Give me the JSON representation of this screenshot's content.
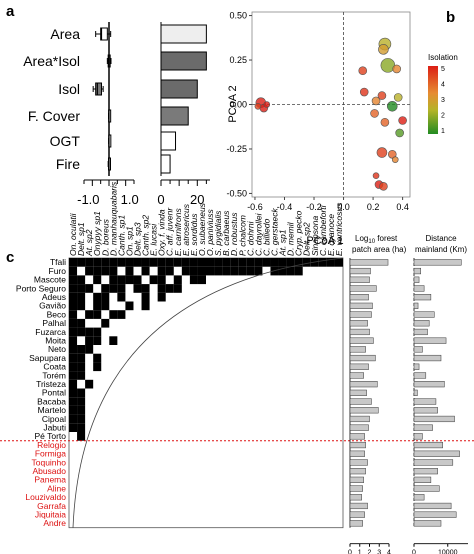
{
  "panels": {
    "a": {
      "letter": "a",
      "rows": [
        "Area",
        "Area*Isol",
        "Isol",
        "F. Cover",
        "OGT",
        "Fire"
      ],
      "effect": {
        "ticks": [
          "-1.0",
          "1.0"
        ],
        "axis": [
          -1.5,
          1.5
        ],
        "mean": [
          -0.45,
          0.0,
          -0.7,
          0.0,
          0.0,
          0.0
        ],
        "q1": [
          -0.5,
          -0.05,
          -0.8,
          -0.02,
          -0.01,
          -0.03
        ],
        "q3": [
          -0.1,
          0.05,
          -0.45,
          0.02,
          0.01,
          0.03
        ],
        "lo": [
          -0.8,
          -0.1,
          -0.95,
          -0.03,
          -0.02,
          -0.05
        ],
        "hi": [
          0.1,
          0.12,
          -0.35,
          0.03,
          0.02,
          0.06
        ]
      },
      "importance": {
        "ticks": [
          "0",
          "20"
        ],
        "axis": [
          0,
          27
        ],
        "values": [
          25,
          25,
          20,
          15,
          8,
          5
        ],
        "colors": [
          "#eeeeee",
          "#6b6b6b",
          "#6b6b6b",
          "#7a7a7a",
          "#ffffff",
          "#ffffff"
        ]
      }
    },
    "b": {
      "letter": "b",
      "chart_data": {
        "type": "scatter",
        "xlabel": "PCoA 1",
        "ylabel": "PCoA 2",
        "xlim": [
          -0.62,
          0.45
        ],
        "ylim": [
          -0.52,
          0.52
        ],
        "xticks": [
          "-0.6",
          "-0.4",
          "-0.2",
          "0.0",
          "0.2",
          "0.4"
        ],
        "yticks": [
          "0.50",
          "0.25",
          "0.00",
          "-0.25",
          "-0.50"
        ],
        "legend_title": "Isolation",
        "legend_ticks": [
          "5",
          "4",
          "3",
          "2",
          "1"
        ],
        "points": [
          {
            "x": -0.56,
            "y": 0.01,
            "iso": 5,
            "r": 5
          },
          {
            "x": -0.54,
            "y": -0.02,
            "iso": 5,
            "r": 4
          },
          {
            "x": -0.58,
            "y": -0.01,
            "iso": 4.5,
            "r": 3
          },
          {
            "x": -0.52,
            "y": 0.0,
            "iso": 5,
            "r": 3
          },
          {
            "x": 0.13,
            "y": 0.19,
            "iso": 4.5,
            "r": 4
          },
          {
            "x": 0.14,
            "y": 0.07,
            "iso": 4.7,
            "r": 4
          },
          {
            "x": 0.22,
            "y": 0.02,
            "iso": 3.5,
            "r": 4
          },
          {
            "x": 0.21,
            "y": -0.05,
            "iso": 4,
            "r": 4
          },
          {
            "x": 0.28,
            "y": 0.34,
            "iso": 2.5,
            "r": 6
          },
          {
            "x": 0.27,
            "y": 0.31,
            "iso": 3,
            "r": 5
          },
          {
            "x": 0.3,
            "y": 0.22,
            "iso": 2,
            "r": 7
          },
          {
            "x": 0.36,
            "y": 0.2,
            "iso": 3.5,
            "r": 4
          },
          {
            "x": 0.26,
            "y": 0.05,
            "iso": 4.5,
            "r": 4
          },
          {
            "x": 0.37,
            "y": 0.04,
            "iso": 2.5,
            "r": 4
          },
          {
            "x": 0.33,
            "y": -0.01,
            "iso": 1,
            "r": 5
          },
          {
            "x": 0.28,
            "y": -0.1,
            "iso": 4,
            "r": 4
          },
          {
            "x": 0.4,
            "y": -0.09,
            "iso": 5,
            "r": 4
          },
          {
            "x": 0.38,
            "y": -0.16,
            "iso": 1.5,
            "r": 4
          },
          {
            "x": 0.26,
            "y": -0.27,
            "iso": 4.5,
            "r": 5
          },
          {
            "x": 0.33,
            "y": -0.28,
            "iso": 4,
            "r": 4
          },
          {
            "x": 0.24,
            "y": -0.45,
            "iso": 5,
            "r": 4
          },
          {
            "x": 0.27,
            "y": -0.46,
            "iso": 4.5,
            "r": 4
          },
          {
            "x": 0.22,
            "y": -0.4,
            "iso": 4.7,
            "r": 3
          },
          {
            "x": 0.35,
            "y": -0.31,
            "iso": 3.5,
            "r": 3
          }
        ]
      }
    },
    "c": {
      "letter": "c",
      "species": [
        "On. oculatii",
        "Delt. sp1",
        "At. sp2",
        "Onypyy sp1",
        "D. boreus",
        "D. manhauquabaris",
        "Canth. sp1",
        "On. sp1",
        "Delt. sp3",
        "Canth. sp2",
        "E. lucasi",
        "Oxy. f. vinda",
        "C. aff. juvenr",
        "E. carnifrons",
        "E. atrosericus",
        "E. sordidus",
        "O. subaeneus",
        "O. paniviuss",
        "S. pygidialis",
        "B. carbaeus",
        "D. robustus",
        "P. chalcom",
        "C. dohrni",
        "C. dayrollei",
        "C. billiedo",
        "C. gerstaeck",
        "At. sp1",
        "D. memil",
        "Cryp. pecko",
        "Delt. sp2",
        "Sinapsona",
        "C. cambeforti",
        "E. cyanoce",
        "E. ventricosus"
      ],
      "sites": [
        "Tfali",
        "Furo",
        "Mascote",
        "Porto Seguro",
        "Adeus",
        "Gavião",
        "Beco",
        "Palhal",
        "Fuzarca",
        "Moita",
        "Neto",
        "Sapupara",
        "Coata",
        "Torém",
        "Tristeza",
        "Pontal",
        "Bacaba",
        "Martelo",
        "Cipoal",
        "Jabuti",
        "Pé Torto",
        "Relogio",
        "Formiga",
        "Toquinho",
        "Abusado",
        "Panema",
        "Aline",
        "Louzivaldo",
        "Garrafa",
        "Jiquitaia",
        "Andre"
      ],
      "red_from_index": 21,
      "site_color_normal": "#000000",
      "site_color_highlight": "#dd1111",
      "presence": [
        [
          0,
          1,
          2,
          3,
          4,
          5,
          6,
          7,
          8,
          9,
          10,
          11,
          12,
          13,
          14,
          15,
          16,
          17,
          18,
          19,
          20,
          21,
          22,
          23,
          24,
          25,
          26,
          27,
          28,
          29,
          30,
          31,
          32,
          33
        ],
        [
          0,
          2,
          3,
          4,
          5,
          7,
          9,
          11,
          12,
          14,
          15,
          16,
          17,
          18,
          19,
          20,
          21,
          22,
          23,
          25,
          26,
          27,
          28
        ],
        [
          0,
          1,
          3,
          5,
          6,
          7,
          8,
          10,
          11,
          13,
          15,
          16
        ],
        [
          0,
          1,
          2,
          4,
          5,
          6,
          8,
          9,
          11,
          12,
          13
        ],
        [
          0,
          1,
          3,
          4,
          6,
          9,
          11
        ],
        [
          0,
          1,
          3,
          4,
          7,
          9
        ],
        [
          0,
          2,
          3,
          5,
          6
        ],
        [
          0,
          1,
          4
        ],
        [
          0,
          1,
          2,
          3
        ],
        [
          0,
          2,
          3,
          5
        ],
        [
          0,
          1,
          2
        ],
        [
          0,
          1,
          3
        ],
        [
          0,
          1,
          3
        ],
        [
          0,
          1
        ],
        [
          0,
          2
        ],
        [
          0,
          1
        ],
        [
          0,
          1
        ],
        [
          0,
          1
        ],
        [
          0,
          1
        ],
        [
          0,
          1
        ],
        [
          1
        ],
        [],
        [],
        [],
        [],
        [],
        [],
        [],
        [],
        [],
        []
      ],
      "forest": {
        "label1": "Log",
        "label_sub": "10",
        "label2": " forest",
        "label3": "patch area (ha)",
        "ticks": [
          "0",
          "1",
          "2",
          "3",
          "4"
        ],
        "values": [
          3.9,
          2.1,
          2.0,
          2.7,
          1.9,
          2.3,
          2.2,
          1.8,
          2.0,
          2.4,
          1.6,
          2.6,
          1.9,
          1.4,
          2.8,
          1.7,
          2.2,
          2.9,
          2.0,
          1.9,
          1.5,
          1.6,
          1.5,
          1.8,
          1.6,
          1.4,
          1.3,
          1.2,
          1.8,
          1.5,
          1.3
        ]
      },
      "distance": {
        "label1": "Distance",
        "label2": "mainland (Km)",
        "ticks": [
          "0",
          "10000"
        ],
        "values": [
          14000,
          2000,
          1500,
          3000,
          5000,
          1200,
          6000,
          4500,
          4000,
          9500,
          2500,
          8000,
          1500,
          3500,
          9000,
          1000,
          6500,
          7000,
          12000,
          5500,
          2500,
          8500,
          13500,
          11500,
          7000,
          5000,
          7500,
          3000,
          11000,
          12500,
          8000
        ]
      }
    }
  }
}
